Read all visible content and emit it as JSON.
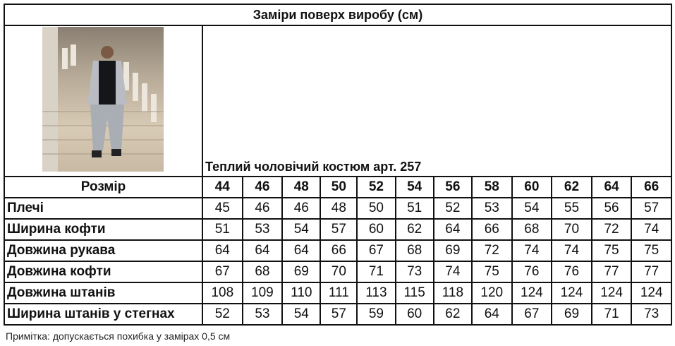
{
  "title": "Заміри поверх виробу (см)",
  "product_caption": "Теплий чоловічий костюм арт. 257",
  "photo_alt": "man-in-grey-tracksuit-photo",
  "size_header": "Розмір",
  "sizes": [
    "44",
    "46",
    "48",
    "50",
    "52",
    "54",
    "56",
    "58",
    "60",
    "62",
    "64",
    "66"
  ],
  "rows": [
    {
      "label": "Плечі",
      "values": [
        "45",
        "46",
        "46",
        "48",
        "50",
        "51",
        "52",
        "53",
        "54",
        "55",
        "56",
        "57"
      ]
    },
    {
      "label": "Ширина кофти",
      "values": [
        "51",
        "53",
        "54",
        "57",
        "60",
        "62",
        "64",
        "66",
        "68",
        "70",
        "72",
        "74"
      ]
    },
    {
      "label": "Довжина рукава",
      "values": [
        "64",
        "64",
        "64",
        "66",
        "67",
        "68",
        "69",
        "72",
        "74",
        "74",
        "75",
        "75"
      ]
    },
    {
      "label": "Довжина кофти",
      "values": [
        "67",
        "68",
        "69",
        "70",
        "71",
        "73",
        "74",
        "75",
        "76",
        "76",
        "77",
        "77"
      ]
    },
    {
      "label": "Довжина штанів",
      "values": [
        "108",
        "109",
        "110",
        "111",
        "113",
        "115",
        "118",
        "120",
        "124",
        "124",
        "124",
        "124"
      ]
    },
    {
      "label": "Ширина штанів у стегнах",
      "values": [
        "52",
        "53",
        "54",
        "57",
        "59",
        "60",
        "62",
        "64",
        "67",
        "69",
        "71",
        "73"
      ]
    }
  ],
  "note": "Примітка: допускається похибка у замірах 0,5 см"
}
